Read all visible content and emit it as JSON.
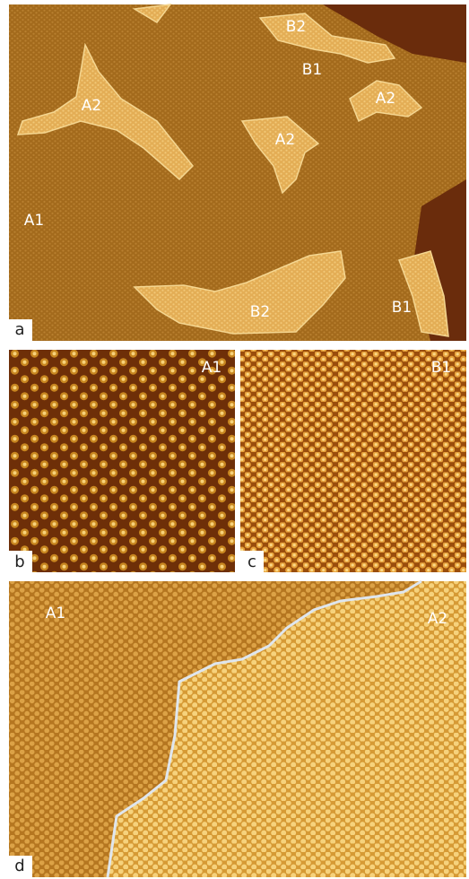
{
  "panels": [
    {
      "label": "a",
      "annotations": [
        "B2",
        "B1",
        "A2",
        "A2",
        "A2",
        "A1",
        "B2",
        "B1"
      ]
    },
    {
      "label": "b",
      "annotations": [
        "A1"
      ]
    },
    {
      "label": "c",
      "annotations": [
        "B1"
      ]
    },
    {
      "label": "d",
      "annotations": [
        "A1",
        "A2"
      ]
    }
  ]
}
